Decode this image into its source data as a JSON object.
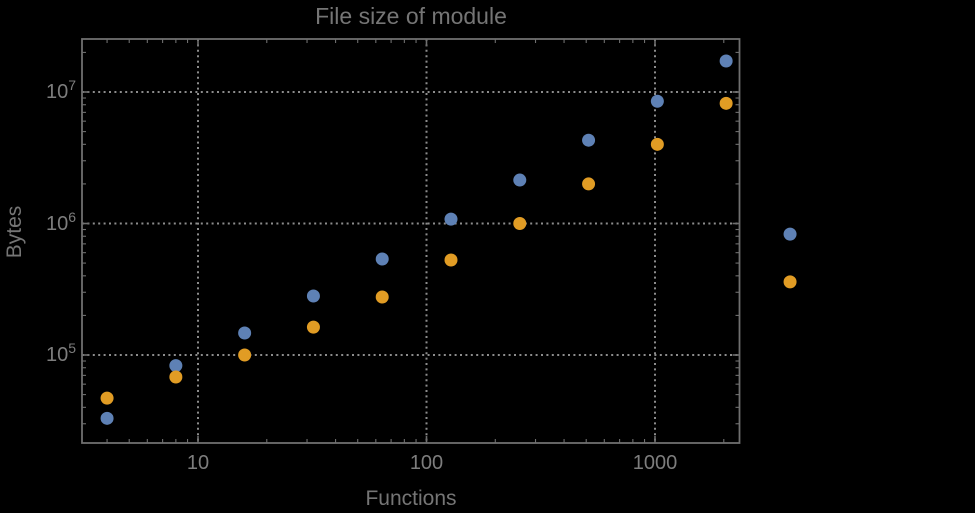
{
  "chart_data": {
    "type": "scatter",
    "title": "File size of module",
    "xlabel": "Functions",
    "ylabel": "Bytes",
    "log_x": true,
    "log_y": true,
    "grid": "dotted-at-decades",
    "legend": "none",
    "clipping": false,
    "xlim": [
      3.2,
      2360
    ],
    "ylim": [
      20500,
      25600000
    ],
    "x_major_ticks": [
      10,
      100,
      1000
    ],
    "x_tick_labels": [
      "10",
      "100",
      "1000"
    ],
    "y_major_ticks": [
      100000,
      1000000,
      10000000
    ],
    "y_tick_labels": [
      {
        "base": "10",
        "exp": "5"
      },
      {
        "base": "10",
        "exp": "6"
      },
      {
        "base": "10",
        "exp": "7"
      }
    ],
    "x": [
      4,
      8,
      16,
      32,
      64,
      128,
      256,
      512,
      1024,
      2048,
      3900
    ],
    "series": [
      {
        "name": "blue",
        "color": "#5e81b5",
        "values": [
          33000,
          83000,
          147000,
          281000,
          537000,
          1080000,
          2140000,
          4300000,
          8500000,
          17200000,
          830000
        ]
      },
      {
        "name": "orange",
        "color": "#e19c24",
        "values": [
          47000,
          68000,
          100000,
          163000,
          276000,
          528000,
          1000000,
          2000000,
          4000000,
          8200000,
          360000
        ]
      }
    ],
    "colors": {
      "background": "#000000",
      "grid": "#8c8c8c",
      "frame": "#6f6f6f",
      "text": "#757575",
      "tick_text": "#7d7d7d"
    }
  }
}
